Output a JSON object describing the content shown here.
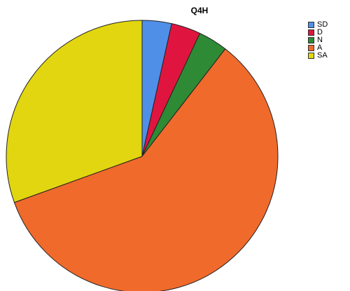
{
  "chart_data": {
    "type": "pie",
    "title": "Q4H",
    "legend_position": "top-right",
    "slices": [
      {
        "label": "SD",
        "value": 3.5,
        "color": "#4f8fe8"
      },
      {
        "label": "D",
        "value": 3.5,
        "color": "#e0153f"
      },
      {
        "label": "N",
        "value": 3.5,
        "color": "#2e8a35"
      },
      {
        "label": "A",
        "value": 59.0,
        "color": "#f06a2c"
      },
      {
        "label": "SA",
        "value": 30.5,
        "color": "#e2d610"
      }
    ]
  }
}
